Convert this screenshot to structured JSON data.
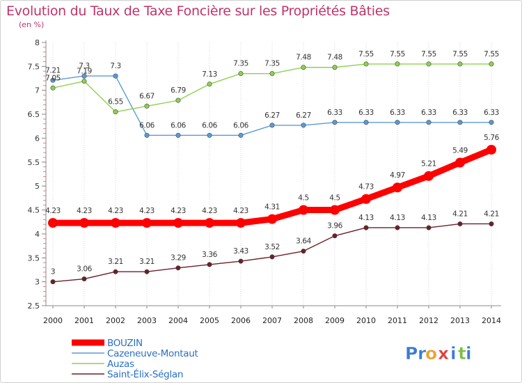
{
  "title": "Evolution du Taux de Taxe Foncière sur les Propriétés Bâties",
  "subtitle": "(en %)",
  "logo_text": "Proxiti",
  "chart_data": {
    "type": "line",
    "title": "Evolution du Taux de Taxe Foncière sur les Propriétés Bâties",
    "ylabel": "(en %)",
    "xlabel": "",
    "x": [
      "2000",
      "2001",
      "2002",
      "2003",
      "2004",
      "2005",
      "2006",
      "2007",
      "2008",
      "2009",
      "2010",
      "2011",
      "2012",
      "2013",
      "2014"
    ],
    "ylim": [
      2.5,
      8
    ],
    "yticks": [
      2.5,
      3,
      3.5,
      4,
      4.5,
      5,
      5.5,
      6,
      6.5,
      7,
      7.5,
      8
    ],
    "grid": "vertical",
    "legend_position": "bottom-left",
    "series": [
      {
        "name": "BOUZIN",
        "color": "#ff0000",
        "values": [
          4.23,
          4.23,
          4.23,
          4.23,
          4.23,
          4.23,
          4.23,
          4.31,
          4.5,
          4.5,
          4.73,
          4.97,
          5.21,
          5.49,
          5.76
        ]
      },
      {
        "name": "Cazeneuve-Montaut",
        "color": "#5b9bd5",
        "values": [
          7.21,
          7.3,
          7.3,
          6.06,
          6.06,
          6.06,
          6.06,
          6.27,
          6.27,
          6.33,
          6.33,
          6.33,
          6.33,
          6.33,
          6.33
        ]
      },
      {
        "name": "Auzas",
        "color": "#8ed14e",
        "values": [
          7.05,
          7.19,
          6.55,
          6.67,
          6.79,
          7.13,
          7.35,
          7.35,
          7.48,
          7.48,
          7.55,
          7.55,
          7.55,
          7.55,
          7.55
        ]
      },
      {
        "name": "Saint-Élix-Séglan",
        "color": "#6b1f28",
        "values": [
          3,
          3.06,
          3.21,
          3.21,
          3.29,
          3.36,
          3.43,
          3.52,
          3.64,
          3.96,
          4.13,
          4.13,
          4.13,
          4.21,
          4.21
        ]
      }
    ]
  }
}
